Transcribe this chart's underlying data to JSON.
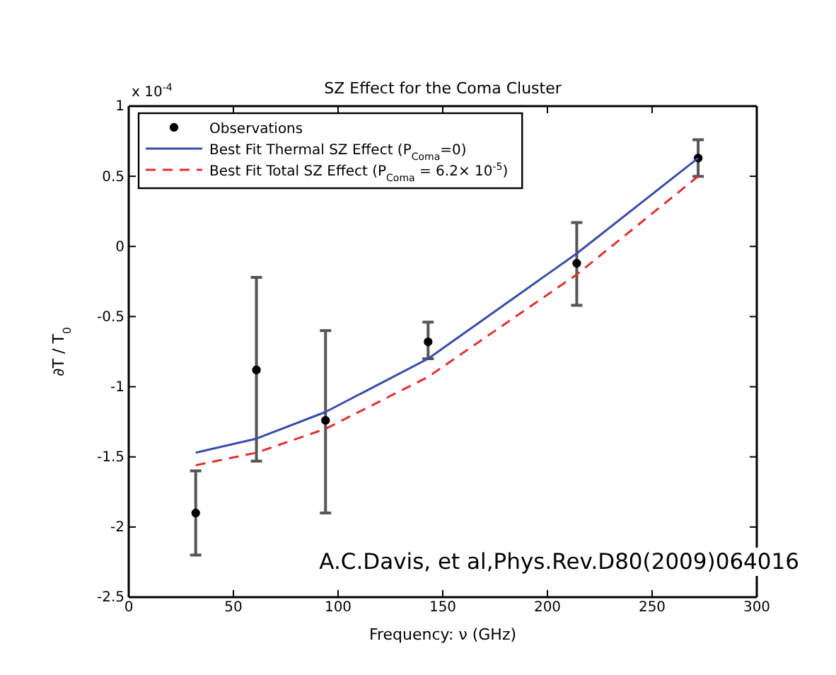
{
  "chart_data": {
    "type": "line",
    "title": "SZ Effect for the Coma Cluster",
    "xlabel": "Frequency: ν (GHz)",
    "ylabel": "∂T / T$_{0}$",
    "xlim": [
      0,
      300
    ],
    "xticks": [
      0,
      50,
      100,
      150,
      200,
      250,
      300
    ],
    "ylim": [
      -2.5,
      1
    ],
    "yticks": [
      -2.5,
      -2,
      -1.5,
      -1,
      -0.5,
      0,
      0.5,
      1
    ],
    "legend": "top left",
    "grid": false,
    "annotations": [
      "x 10$^{-4}$",
      "A.C.Davis, et al,Phys.Rev.D80(2009)064016"
    ],
    "series": [
      {
        "name": "Observations",
        "type": "scatter",
        "marker": "circle",
        "color": "#000000",
        "x": [
          32,
          61,
          94,
          143,
          214,
          272
        ],
        "values": [
          -1.9,
          -0.88,
          -1.24,
          -0.68,
          -0.12,
          0.63
        ],
        "errors": [
          [
            -2.2,
            -1.6
          ],
          [
            -1.53,
            -0.22
          ],
          [
            -1.9,
            -0.6
          ],
          [
            -0.8,
            -0.54
          ],
          [
            -0.42,
            0.17
          ],
          [
            0.5,
            0.76
          ]
        ]
      },
      {
        "name": "Best Fit Thermal SZ Effect (P$_{Coma}$=0)",
        "type": "line",
        "line_style": "solid",
        "color": "#3a4ea8",
        "x": [
          32,
          61,
          94,
          143,
          214,
          272
        ],
        "values": [
          -1.47,
          -1.37,
          -1.18,
          -0.8,
          -0.05,
          0.63
        ]
      },
      {
        "name": "Best Fit Total SZ Effect (P$_{Coma}$ = 6.2× 10$^{-5}$)",
        "type": "line",
        "line_style": "dashed",
        "color": "#e03030",
        "x": [
          32,
          61,
          94,
          143,
          214,
          272
        ],
        "values": [
          -1.56,
          -1.47,
          -1.3,
          -0.93,
          -0.2,
          0.5
        ]
      }
    ]
  }
}
